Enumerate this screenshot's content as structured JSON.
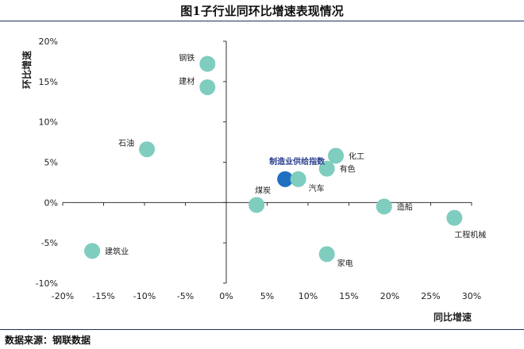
{
  "title": "图1子行业同环比增速表现情况",
  "source": "数据来源：钢联数据",
  "chart_data": {
    "type": "scatter",
    "xlabel": "同比增速",
    "ylabel": "环比增速",
    "xlim": [
      -20,
      30
    ],
    "ylim": [
      -10,
      20
    ],
    "x_ticks": [
      -20,
      -15,
      -10,
      -5,
      0,
      5,
      10,
      15,
      20,
      25,
      30
    ],
    "y_ticks": [
      -10,
      -5,
      0,
      5,
      10,
      15,
      20
    ],
    "tick_suffix": "%",
    "grid": false,
    "colors": {
      "point": "#7fcdbe",
      "highlight": "#1f6fc1",
      "axis": "#333333",
      "highlight_label": "#2a3f8f"
    },
    "points": [
      {
        "label": "钢铁",
        "x": -2.3,
        "y": 17.2,
        "label_side": "left"
      },
      {
        "label": "建材",
        "x": -2.3,
        "y": 14.3,
        "label_side": "left"
      },
      {
        "label": "石油",
        "x": -9.7,
        "y": 6.6,
        "label_side": "left"
      },
      {
        "label": "化工",
        "x": 13.4,
        "y": 5.8,
        "label_side": "right"
      },
      {
        "label": "有色",
        "x": 12.3,
        "y": 4.2,
        "label_side": "right"
      },
      {
        "label": "制造业供给指数",
        "x": 7.2,
        "y": 2.9,
        "label_side": "top-left",
        "highlight": true
      },
      {
        "label": "汽车",
        "x": 8.8,
        "y": 2.9,
        "label_side": "bottom-right"
      },
      {
        "label": "煤炭",
        "x": 3.7,
        "y": -0.3,
        "label_side": "top"
      },
      {
        "label": "造船",
        "x": 19.3,
        "y": -0.5,
        "label_side": "right"
      },
      {
        "label": "工程机械",
        "x": 27.9,
        "y": -1.9,
        "label_side": "bottom"
      },
      {
        "label": "建筑业",
        "x": -16.4,
        "y": -6.0,
        "label_side": "right"
      },
      {
        "label": "家电",
        "x": 12.3,
        "y": -6.4,
        "label_side": "bottom-right"
      }
    ]
  }
}
